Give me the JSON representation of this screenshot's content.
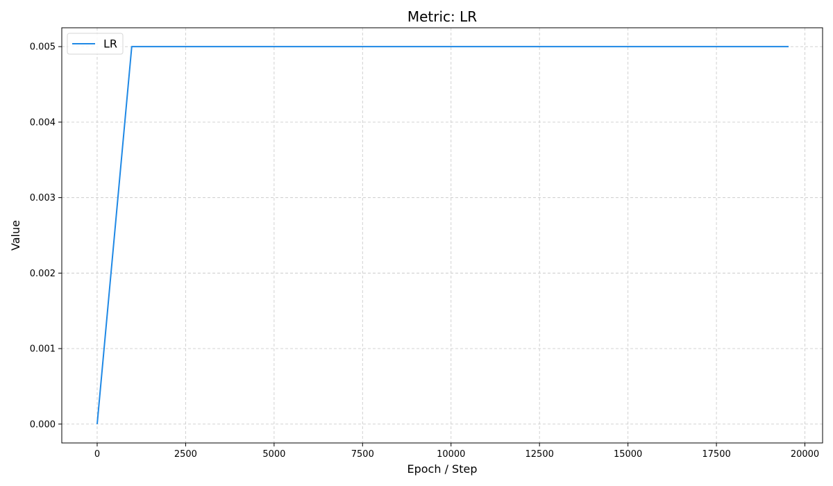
{
  "chart_data": {
    "type": "line",
    "title": "Metric: LR",
    "xlabel": "Epoch / Step",
    "ylabel": "Value",
    "xlim": [
      -1000,
      20500
    ],
    "ylim": [
      -0.00025,
      0.00525
    ],
    "x_ticks": [
      0,
      2500,
      5000,
      7500,
      10000,
      12500,
      15000,
      17500,
      20000
    ],
    "x_tick_labels": [
      "0",
      "2500",
      "5000",
      "7500",
      "10000",
      "12500",
      "15000",
      "17500",
      "20000"
    ],
    "y_ticks": [
      0.0,
      0.001,
      0.002,
      0.003,
      0.004,
      0.005
    ],
    "y_tick_labels": [
      "0.000",
      "0.001",
      "0.002",
      "0.003",
      "0.004",
      "0.005"
    ],
    "grid": true,
    "legend_position": "top-left",
    "series": [
      {
        "name": "LR",
        "color": "#1e88e5",
        "x": [
          0,
          977,
          19540
        ],
        "y": [
          0.0,
          0.005,
          0.005
        ]
      }
    ]
  }
}
